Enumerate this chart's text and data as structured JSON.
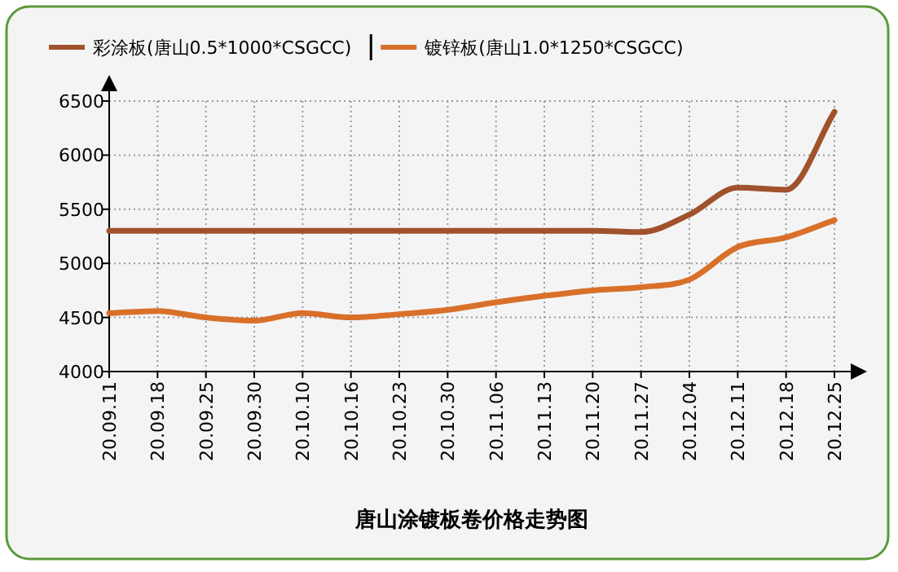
{
  "chart_data": {
    "type": "line",
    "title": "唐山涂镀板卷价格走势图",
    "categories": [
      "20.09.11",
      "20.09.18",
      "20.09.25",
      "20.09.30",
      "20.10.10",
      "20.10.16",
      "20.10.23",
      "20.10.30",
      "20.11.06",
      "20.11.13",
      "20.11.20",
      "20.11.27",
      "20.12.04",
      "20.12.11",
      "20.12.18",
      "20.12.25"
    ],
    "series": [
      {
        "name": "彩涂板(唐山0.5*1000*CSGCC)",
        "color": "#a0522d",
        "values": [
          5300,
          5300,
          5300,
          5300,
          5300,
          5300,
          5300,
          5300,
          5300,
          5300,
          5300,
          5290,
          5450,
          5700,
          5680,
          6400
        ]
      },
      {
        "name": "镀锌板(唐山1.0*1250*CSGCC)",
        "color": "#d9702a",
        "values": [
          4540,
          4560,
          4500,
          4470,
          4540,
          4500,
          4530,
          4570,
          4640,
          4700,
          4750,
          4780,
          4850,
          5150,
          5240,
          5400
        ]
      }
    ],
    "ylim": [
      4000,
      6500
    ],
    "yticks": [
      4000,
      4500,
      5000,
      5500,
      6000,
      6500
    ],
    "grid": true,
    "legend": "top"
  }
}
